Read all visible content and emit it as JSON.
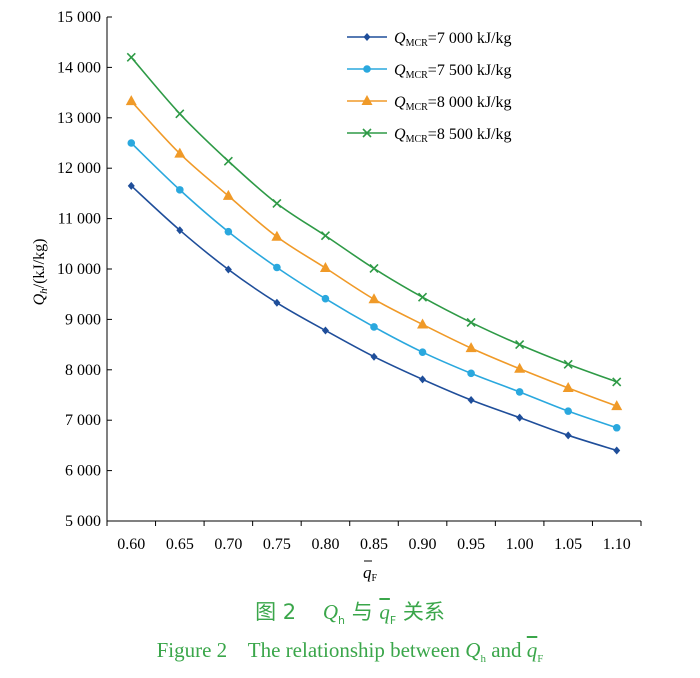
{
  "chart_data": {
    "type": "line",
    "x": [
      0.6,
      0.65,
      0.7,
      0.75,
      0.8,
      0.85,
      0.9,
      0.95,
      1.0,
      1.05,
      1.1
    ],
    "x_tick_labels": [
      "0.60",
      "0.65",
      "0.70",
      "0.75",
      "0.80",
      "0.85",
      "0.90",
      "0.95",
      "1.00",
      "1.05",
      "1.10"
    ],
    "y_tick_labels": [
      "5 000",
      "6 000",
      "7 000",
      "8 000",
      "9 000",
      "10 000",
      "11 000",
      "12 000",
      "13 000",
      "14 000",
      "15 000"
    ],
    "y_ticks": [
      5000,
      6000,
      7000,
      8000,
      9000,
      10000,
      11000,
      12000,
      13000,
      14000,
      15000
    ],
    "ylim": [
      5000,
      15000
    ],
    "xlim": [
      0.575,
      1.125
    ],
    "xlabel": "q̄F",
    "ylabel": "Qh/(kJ/kg)",
    "grid": false,
    "legend_position": "top-right",
    "series": [
      {
        "name": "QMCR=7 000 kJ/kg",
        "legend_prefix": "Q",
        "legend_sub": "MCR",
        "legend_suffix": "=7 000 kJ/kg",
        "color": "#1f4e9a",
        "marker": "diamond",
        "values": [
          11650,
          10770,
          9990,
          9330,
          8780,
          8260,
          7810,
          7400,
          7050,
          6700,
          6400
        ]
      },
      {
        "name": "QMCR=7 500 kJ/kg",
        "legend_prefix": "Q",
        "legend_sub": "MCR",
        "legend_suffix": "=7 500 kJ/kg",
        "color": "#2aa8de",
        "marker": "circle",
        "values": [
          12500,
          11570,
          10740,
          10030,
          9410,
          8850,
          8350,
          7930,
          7560,
          7180,
          6850
        ]
      },
      {
        "name": "QMCR=8 000 kJ/kg",
        "legend_prefix": "Q",
        "legend_sub": "MCR",
        "legend_suffix": "=8 000 kJ/kg",
        "color": "#f09a28",
        "marker": "triangle",
        "values": [
          13330,
          12290,
          11450,
          10640,
          10020,
          9400,
          8900,
          8430,
          8020,
          7640,
          7280
        ]
      },
      {
        "name": "QMCR=8 500 kJ/kg",
        "legend_prefix": "Q",
        "legend_sub": "MCR",
        "legend_suffix": "=8 500 kJ/kg",
        "color": "#2e9a46",
        "marker": "cross",
        "values": [
          14200,
          13080,
          12140,
          11300,
          10660,
          10010,
          9440,
          8940,
          8500,
          8110,
          7760
        ]
      }
    ]
  },
  "caption": {
    "cn_prefix": "图 2",
    "cn_q": "Q",
    "cn_q_sub": "h",
    "cn_mid": "与",
    "cn_qf": "q",
    "cn_qf_sub": "F",
    "cn_suffix": "关系",
    "en_prefix": "Figure 2",
    "en_text": "The relationship between",
    "en_q": "Q",
    "en_q_sub": "h",
    "en_and": "and",
    "en_qf": "q",
    "en_qf_sub": "F"
  }
}
